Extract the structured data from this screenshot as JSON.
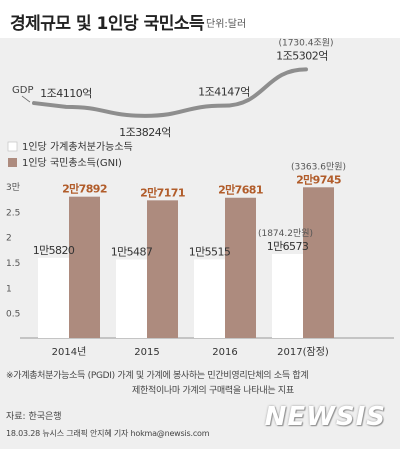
{
  "header": {
    "title": "경제규모 및 1인당 국민소득",
    "unit": "단위:달러"
  },
  "footnote": {
    "line1": "※가계총처분가능소득 (PGDI) 가계 및 가계에 봉사하는 민간비영리단체의 소득 합계",
    "line2": "제한적이나마 가계의 구매력을 나타내는 지표"
  },
  "source": "자료: 한국은행",
  "credit": "18.03.28 뉴시스 그래픽 안지혜 기자 hokma@newsis.com",
  "brand": "NEWSIS",
  "colors": {
    "gni_bar": "#ad8b7e",
    "pgdi_bar": "#ffffff",
    "gdp_line": "#8e8e8e",
    "background": "#efefef"
  },
  "chart_data": [
    {
      "type": "line",
      "series": [
        {
          "name": "GDP",
          "categories": [
            "2014년",
            "2015",
            "2016",
            "2017(잠정)"
          ],
          "values": [
            14110,
            13824,
            14147,
            15302
          ],
          "labels": [
            "1조4110억",
            "1조3824억",
            "1조4147억",
            "1조5302억"
          ]
        }
      ],
      "annotation": "(1730.4조원)"
    },
    {
      "type": "bar",
      "categories": [
        "2014년",
        "2015",
        "2016",
        "2017(잠정)"
      ],
      "series": [
        {
          "name": "1인당 가계총처분가능소득",
          "values": [
            15820,
            15487,
            15515,
            16573
          ],
          "labels": [
            "1만5820",
            "1만5487",
            "1만5515",
            "1만6573"
          ]
        },
        {
          "name": "1인당 국민총소득(GNI)",
          "values": [
            27892,
            27171,
            27681,
            29745
          ],
          "labels": [
            "2만7892",
            "2만7171",
            "2만7681",
            "2만9745"
          ]
        }
      ],
      "annotations": [
        "(3363.6만원)",
        "(1874.2만원)"
      ],
      "yticks": [
        "0.5",
        "1",
        "1.5",
        "2",
        "2.5",
        "3만"
      ],
      "ylim": [
        0,
        30000
      ],
      "grid": false,
      "legend": "top-left"
    }
  ]
}
